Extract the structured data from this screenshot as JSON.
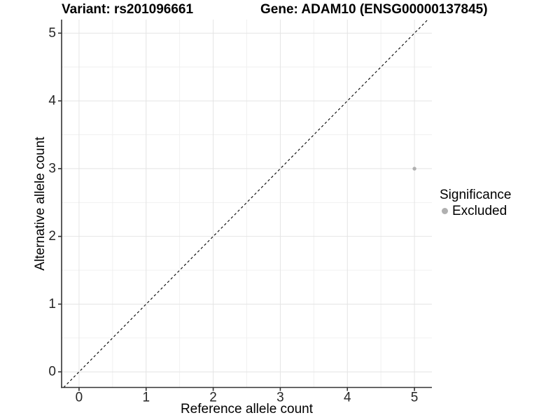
{
  "chart_data": {
    "type": "scatter",
    "title_left": "Variant: rs201096661",
    "title_right": "Gene: ADAM10 (ENSG00000137845)",
    "xlabel": "Reference allele count",
    "ylabel": "Alternative allele count",
    "xlim": [
      -0.26,
      5.26
    ],
    "ylim": [
      -0.23,
      5.2
    ],
    "xticks": [
      0,
      1,
      2,
      3,
      4,
      5
    ],
    "yticks": [
      0,
      1,
      2,
      3,
      4,
      5
    ],
    "xminor": [
      0.5,
      1.5,
      2.5,
      3.5,
      4.5
    ],
    "yminor": [
      0.5,
      1.5,
      2.5,
      3.5,
      4.5
    ],
    "grid": "major and minor gridlines, light gray on white panel",
    "identity_line": {
      "slope": 1,
      "intercept": 0,
      "style": "dashed",
      "color": "#000000"
    },
    "series": [
      {
        "name": "Excluded",
        "color": "#b0b0b0",
        "marker": "circle",
        "points": [
          {
            "x": 5,
            "y": 3
          }
        ]
      }
    ],
    "legend": {
      "title": "Significance",
      "position": "right",
      "items": [
        {
          "label": "Excluded",
          "color": "#b0b0b0"
        }
      ]
    },
    "colors": {
      "background": "#ffffff",
      "grid_major": "#e4e4e4",
      "grid_minor": "#efefef",
      "axis_line": "#333333",
      "tick_mark": "#333333",
      "tick_label": "#262626",
      "text": "#000000"
    }
  }
}
